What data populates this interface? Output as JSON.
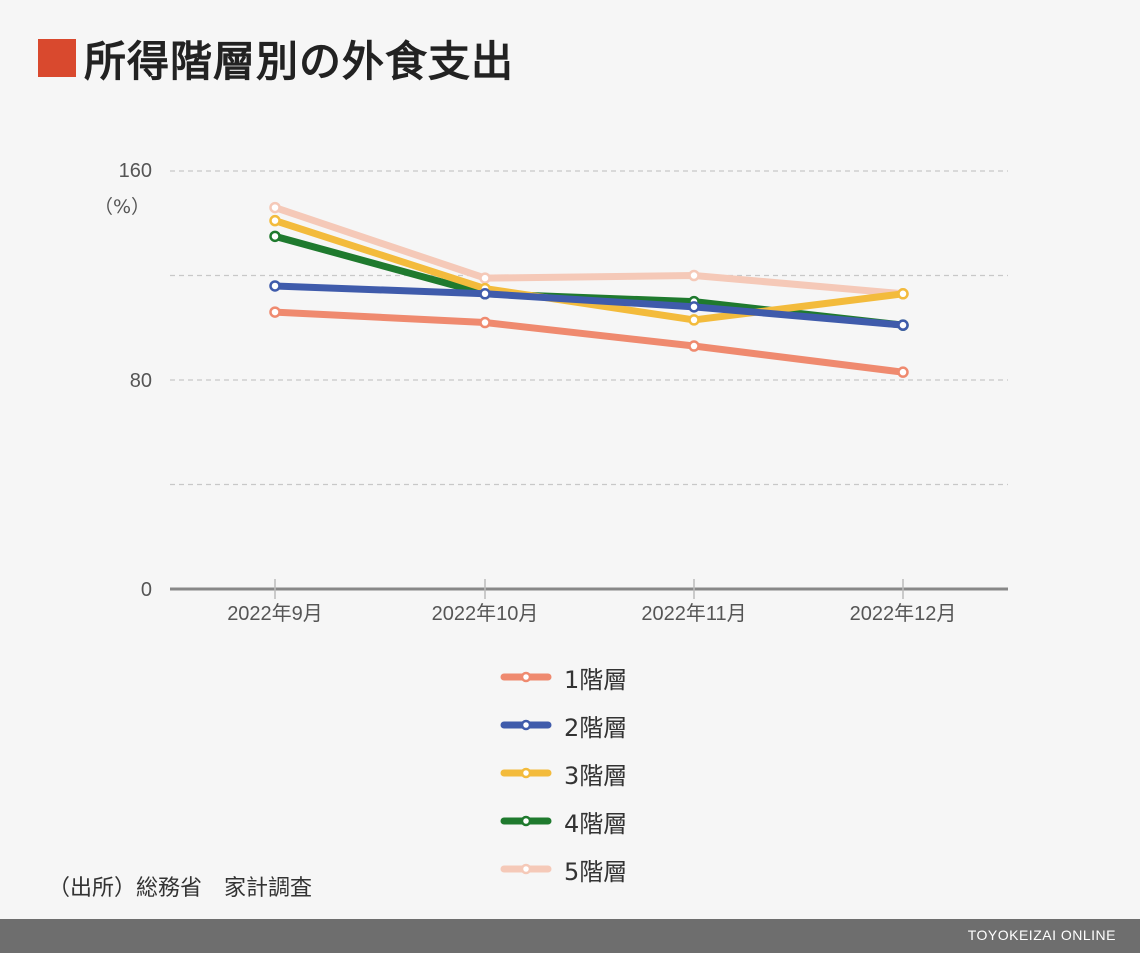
{
  "title": "所得階層別の外食支出",
  "accent_color": "#d9492e",
  "source": "（出所）総務省　家計調査",
  "footer": "TOYOKEIZAI ONLINE",
  "chart_data": {
    "type": "line",
    "unit_label": "（%）",
    "categories": [
      "2022年9月",
      "2022年10月",
      "2022年11月",
      "2022年12月"
    ],
    "yticks": [
      "160",
      "80",
      "0"
    ],
    "ylim": [
      0,
      160
    ],
    "gridlines": [
      40,
      80,
      120,
      160
    ],
    "grid": true,
    "legend_position": "bottom",
    "series": [
      {
        "name": "1階層",
        "color": "#ef8a6f",
        "values": [
          106,
          102,
          93,
          83
        ]
      },
      {
        "name": "2階層",
        "color": "#3f5bab",
        "values": [
          116,
          113,
          108,
          101
        ]
      },
      {
        "name": "3階層",
        "color": "#f3bb3c",
        "values": [
          141,
          115,
          103,
          113
        ]
      },
      {
        "name": "4階層",
        "color": "#1f7a2e",
        "values": [
          135,
          113,
          110,
          101
        ]
      },
      {
        "name": "5階層",
        "color": "#f5c9b8",
        "values": [
          146,
          119,
          120,
          113
        ]
      }
    ]
  }
}
